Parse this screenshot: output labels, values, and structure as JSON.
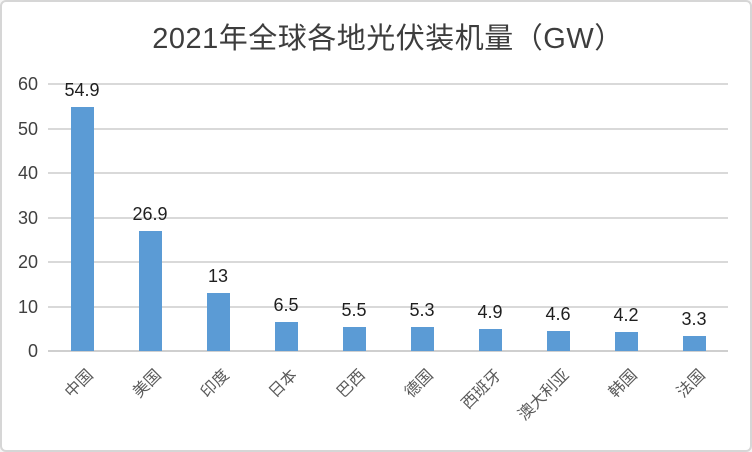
{
  "chart_data": {
    "type": "bar",
    "title": "2021年全球各地光伏装机量（GW）",
    "categories": [
      "中国",
      "美国",
      "印度",
      "日本",
      "巴西",
      "德国",
      "西班牙",
      "澳大利亚",
      "韩国",
      "法国"
    ],
    "values": [
      54.9,
      26.9,
      13,
      6.5,
      5.5,
      5.3,
      4.9,
      4.6,
      4.2,
      3.3
    ],
    "value_labels": [
      "54.9",
      "26.9",
      "13",
      "6.5",
      "5.5",
      "5.3",
      "4.9",
      "4.6",
      "4.2",
      "3.3"
    ],
    "xlabel": "",
    "ylabel": "",
    "y_ticks": [
      0,
      10,
      20,
      30,
      40,
      50,
      60
    ],
    "ylim": [
      0,
      60
    ],
    "grid": true,
    "legend": "none",
    "colors": {
      "bar": "#5b9bd5",
      "gridline": "#d9d9d9",
      "axis_line": "#cfcfcf",
      "y_tick_text": "#404040",
      "value_label_text": "#1f1f1f",
      "category_text": "#595959",
      "title_text": "#3d3d3d",
      "frame_border": "#d6d6d6",
      "background": "#ffffff"
    }
  }
}
